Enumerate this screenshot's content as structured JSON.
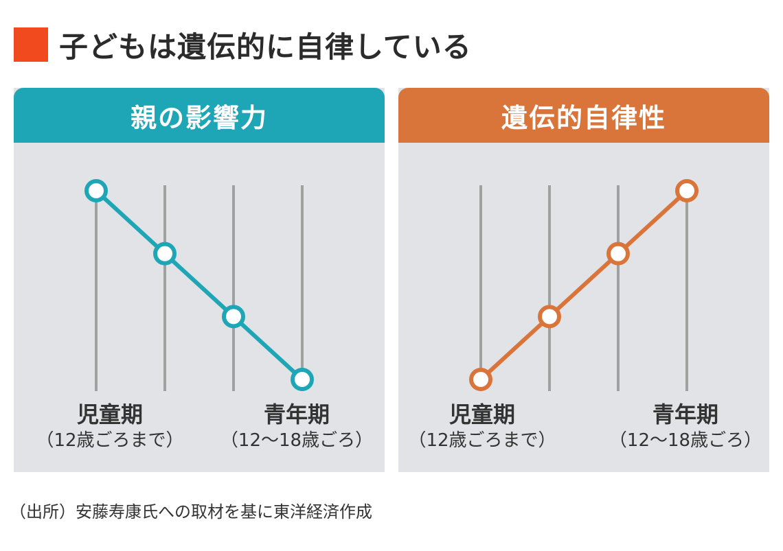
{
  "title": "子どもは遺伝的に自律している",
  "colors": {
    "title_square": "#f04a1e",
    "parent": "#1fa6b6",
    "genetic": "#d9753a",
    "panel_bg": "#e2e3e6",
    "gridline": "#a0a0a0"
  },
  "panels": [
    {
      "header": "親の影響力",
      "stage_left": {
        "name": "児童期",
        "range": "（12歳ごろまで）"
      },
      "stage_right": {
        "name": "青年期",
        "range": "（12〜18歳ごろ）"
      }
    },
    {
      "header": "遺伝的自律性",
      "stage_left": {
        "name": "児童期",
        "range": "（12歳ごろまで）"
      },
      "stage_right": {
        "name": "青年期",
        "range": "（12〜18歳ごろ）"
      }
    }
  ],
  "source": "（出所）安藤寿康氏への取材を基に東洋経済作成",
  "chart_data": [
    {
      "type": "line",
      "title": "親の影響力",
      "x": [
        1,
        2,
        3,
        4
      ],
      "values": [
        4,
        3,
        2,
        1
      ],
      "ylim": [
        1,
        4
      ],
      "grid": true
    },
    {
      "type": "line",
      "title": "遺伝的自律性",
      "x": [
        1,
        2,
        3,
        4
      ],
      "values": [
        1,
        2,
        3,
        4
      ],
      "ylim": [
        1,
        4
      ],
      "grid": true
    }
  ]
}
